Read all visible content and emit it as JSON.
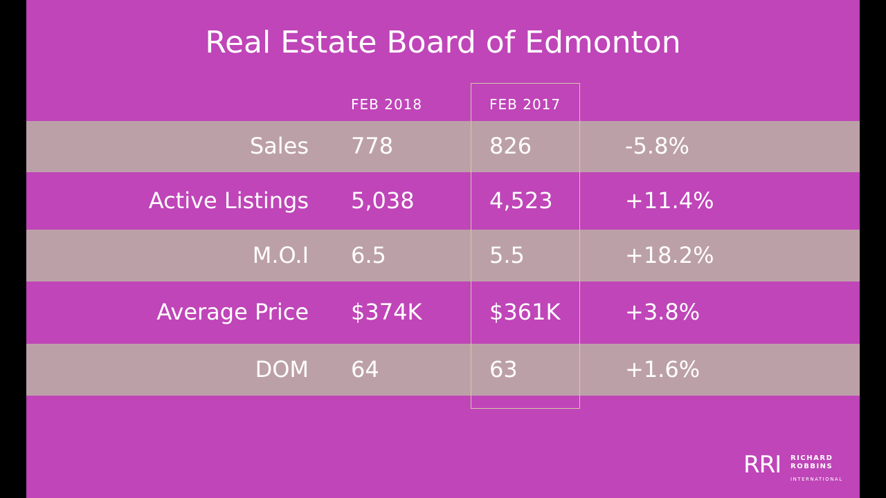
{
  "header": {
    "title": "Real Estate Board of Edmonton"
  },
  "table": {
    "columns": [
      "FEB 2018",
      "FEB 2017"
    ],
    "rows": [
      {
        "label": "Sales",
        "cells": [
          "778",
          "826",
          "-5.8%"
        ]
      },
      {
        "label": "Active Listings",
        "cells": [
          "5,038",
          "4,523",
          "+11.4%"
        ]
      },
      {
        "label": "M.O.I",
        "cells": [
          "6.5",
          "5.5",
          "+18.2%"
        ]
      },
      {
        "label": "Average Price",
        "cells": [
          "$374K",
          "$361K",
          "+3.8%"
        ]
      },
      {
        "label": "DOM",
        "cells": [
          "64",
          "63",
          "+1.6%"
        ]
      }
    ]
  },
  "logo": {
    "mark": "RRI",
    "lines": [
      "RICHARD",
      "ROBBINS",
      "INTERNATIONAL"
    ]
  }
}
